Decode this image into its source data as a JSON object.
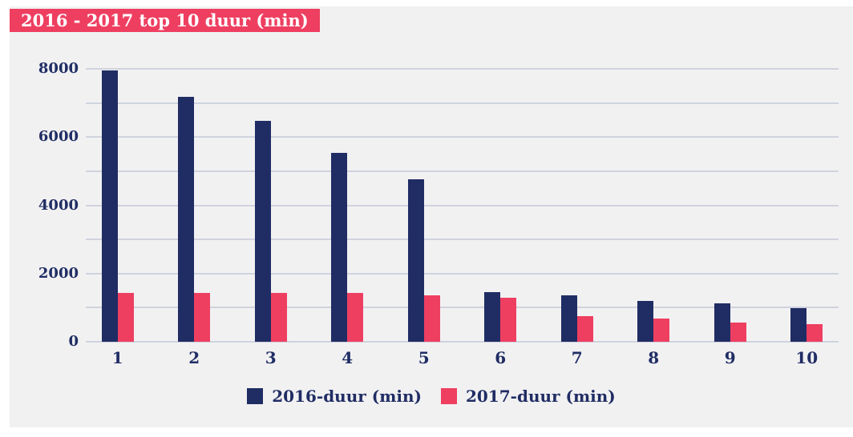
{
  "chart_data": {
    "type": "bar",
    "title": "2016 - 2017 top 10 duur (min)",
    "categories": [
      "1",
      "2",
      "3",
      "4",
      "5",
      "6",
      "7",
      "8",
      "9",
      "10"
    ],
    "series": [
      {
        "name": "2016-duur (min)",
        "color": "#202d64",
        "values": [
          7950,
          7180,
          6480,
          5540,
          4770,
          1460,
          1370,
          1190,
          1120,
          990
        ]
      },
      {
        "name": "2017-duur (min)",
        "color": "#ee3f61",
        "values": [
          1440,
          1440,
          1440,
          1440,
          1370,
          1280,
          750,
          680,
          560,
          510
        ]
      }
    ],
    "xlabel": "",
    "ylabel": "",
    "ylim": [
      0,
      8000
    ],
    "ytick_grid_step": 1000,
    "ytick_label_step": 2000,
    "ytick_labels": [
      "0",
      "2000",
      "4000",
      "6000",
      "8000"
    ],
    "grid": true,
    "legend_position": "bottom"
  },
  "colors": {
    "page_background": "#ffffff",
    "panel_background": "#f1f1f2",
    "banner_background": "#ee3f61",
    "banner_text": "#ffffff",
    "gridline": "#d0d3de",
    "axis_text": "#202d64"
  }
}
